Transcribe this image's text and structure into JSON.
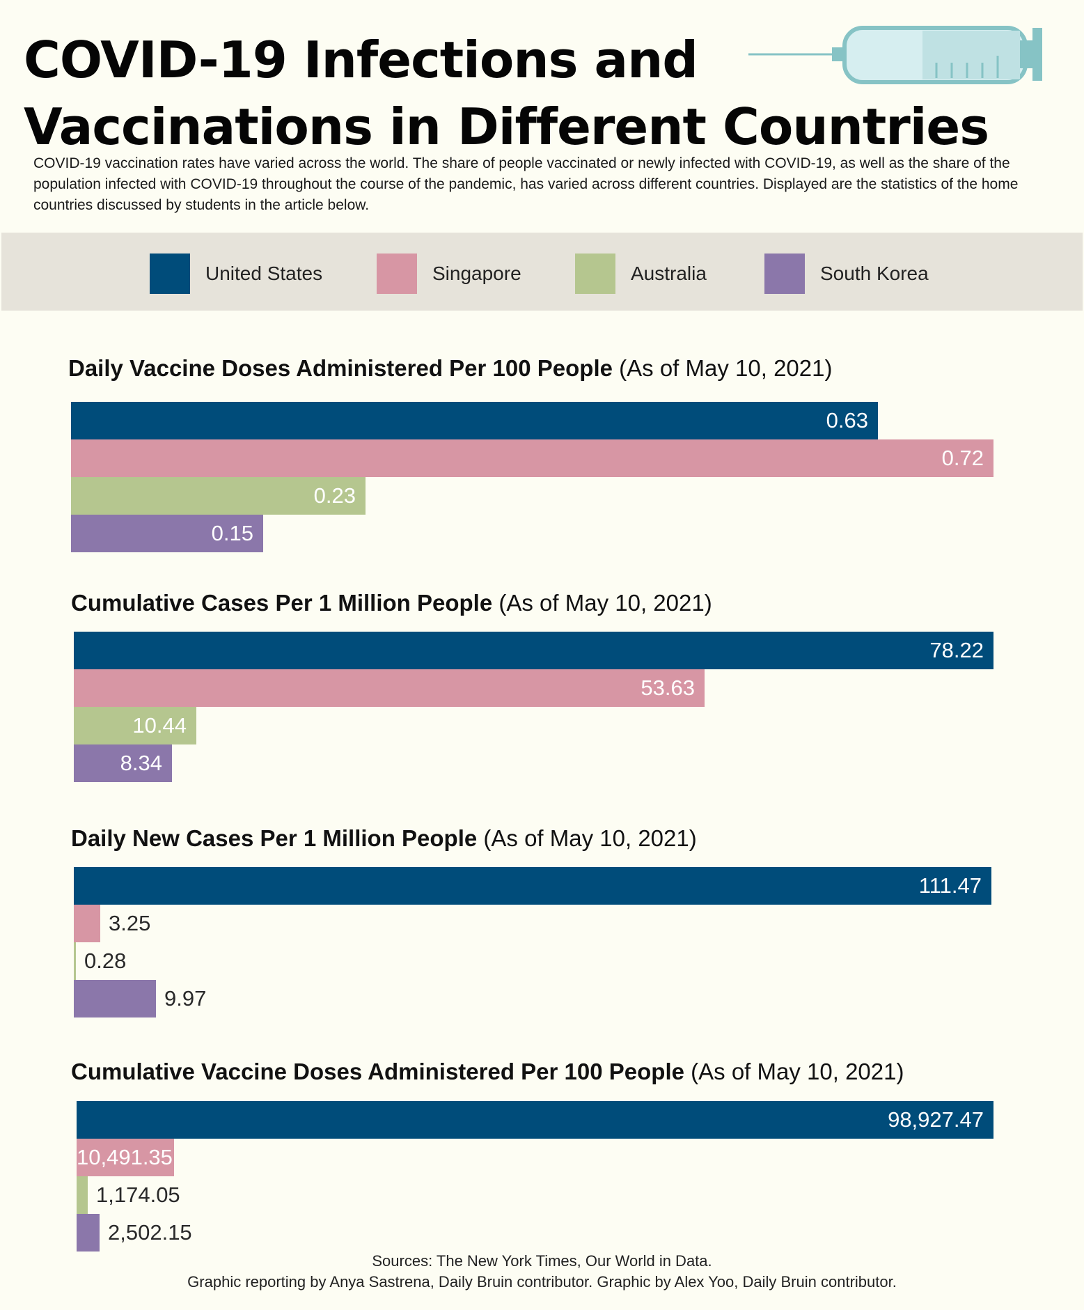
{
  "header": {
    "title_line1": "COVID-19 Infections and",
    "title_line2": "Vaccinations in Different Countries",
    "intro": "COVID-19 vaccination rates have varied across the world. The share of people vaccinated or newly infected with COVID-19, as well as the share of the population infected with COVID-19 throughout the course of the pandemic, has varied across different countries. Displayed are the statistics of the home countries discussed by students in the article below.",
    "icon": "syringe-icon"
  },
  "legend": [
    {
      "label": "United States",
      "color": "#004c7a"
    },
    {
      "label": "Singapore",
      "color": "#d796a4"
    },
    {
      "label": "Australia",
      "color": "#b5c68f"
    },
    {
      "label": "South Korea",
      "color": "#8b77aa"
    }
  ],
  "colors": {
    "background": "#fdfdf3",
    "legend_band": "#e6e3da",
    "syringe_barrel": "#bfe1e3",
    "syringe_dark": "#86c3c5"
  },
  "chart_data": [
    {
      "type": "bar",
      "orientation": "horizontal",
      "title": "Daily Vaccine Doses Administered Per 100 People",
      "subtitle": "(As of May 10, 2021)",
      "categories": [
        "United States",
        "Singapore",
        "Australia",
        "South Korea"
      ],
      "values": [
        0.63,
        0.72,
        0.23,
        0.15
      ],
      "labels": [
        "0.63",
        "0.72",
        "0.23",
        "0.15"
      ],
      "xlim": [
        0,
        0.72
      ]
    },
    {
      "type": "bar",
      "orientation": "horizontal",
      "title": "Cumulative Cases Per 1 Million People",
      "subtitle": "(As of May 10, 2021)",
      "categories": [
        "United States",
        "Singapore",
        "Australia",
        "South Korea"
      ],
      "values": [
        78.22,
        53.63,
        10.44,
        8.34
      ],
      "labels": [
        "78.22",
        "53.63",
        "10.44",
        "8.34"
      ],
      "xlim": [
        0,
        78.22
      ]
    },
    {
      "type": "bar",
      "orientation": "horizontal",
      "title": "Daily New Cases Per 1 Million People",
      "subtitle": "(As of May 10, 2021)",
      "categories": [
        "United States",
        "Singapore",
        "Australia",
        "South Korea"
      ],
      "values": [
        111.47,
        3.25,
        0.28,
        9.97
      ],
      "labels": [
        "111.47",
        "3.25",
        "0.28",
        "9.97"
      ],
      "xlim": [
        0,
        111.47
      ]
    },
    {
      "type": "bar",
      "orientation": "horizontal",
      "title": "Cumulative Vaccine Doses Administered Per 100 People",
      "subtitle": "(As of May 10, 2021)",
      "categories": [
        "United States",
        "Singapore",
        "Australia",
        "South Korea"
      ],
      "values": [
        98927.47,
        10491.35,
        1174.05,
        2502.15
      ],
      "labels": [
        "98,927.47",
        "10,491.35",
        "1,174.05",
        "2,502.15"
      ],
      "xlim": [
        0,
        98927.47
      ]
    }
  ],
  "footer": {
    "sources": "Sources: The New York Times, Our World in Data.",
    "credits": "Graphic reporting by Anya Sastrena, Daily Bruin contributor.  Graphic by Alex Yoo, Daily Bruin contributor."
  }
}
